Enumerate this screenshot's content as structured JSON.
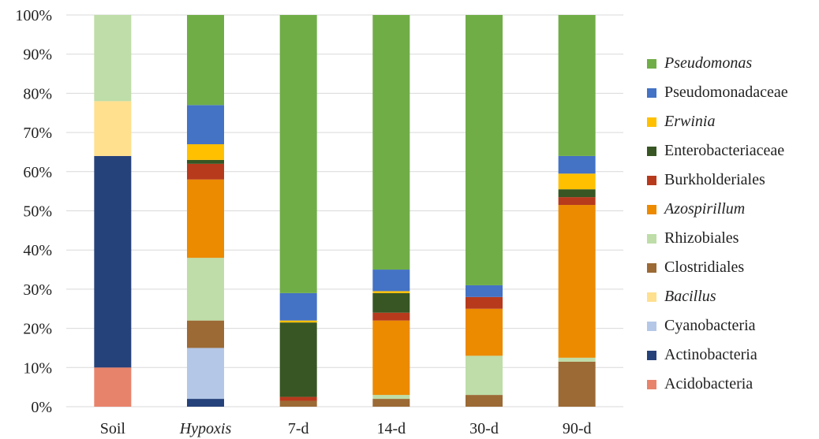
{
  "chart_data": {
    "type": "bar",
    "stacked": true,
    "percent": true,
    "categories": [
      "Soil",
      "Hypoxis",
      "7-d",
      "14-d",
      "30-d",
      "90-d"
    ],
    "categories_italic": [
      false,
      true,
      false,
      false,
      false,
      false
    ],
    "ylim": [
      0,
      100
    ],
    "yticks": [
      "0%",
      "10%",
      "20%",
      "30%",
      "40%",
      "50%",
      "60%",
      "70%",
      "80%",
      "90%",
      "100%"
    ],
    "grid": true,
    "legend_position": "right",
    "series": [
      {
        "name": "Acidobacteria",
        "color": "#E8836B",
        "italic": false,
        "values": [
          10,
          0,
          0,
          0,
          0,
          0
        ]
      },
      {
        "name": "Actinobacteria",
        "color": "#26427A",
        "italic": false,
        "values": [
          54,
          2,
          0,
          0,
          0,
          0
        ]
      },
      {
        "name": "Cyanobacteria",
        "color": "#B4C7E7",
        "italic": false,
        "values": [
          0,
          13,
          0,
          0,
          0,
          0
        ]
      },
      {
        "name": "Bacillus",
        "color": "#FFE08F",
        "italic": true,
        "values": [
          14,
          0,
          0,
          0,
          0,
          0
        ]
      },
      {
        "name": "Clostridiales",
        "color": "#9C6A35",
        "italic": false,
        "values": [
          0,
          7,
          1.5,
          2,
          3,
          11.5
        ]
      },
      {
        "name": "Rhizobiales",
        "color": "#BEDDA8",
        "italic": false,
        "values": [
          22,
          16,
          0,
          1,
          10,
          1
        ]
      },
      {
        "name": "Azospirillum",
        "color": "#EC8A00",
        "italic": true,
        "values": [
          0,
          20,
          0,
          19,
          12,
          39
        ]
      },
      {
        "name": "Burkholderiales",
        "color": "#B73A1D",
        "italic": false,
        "values": [
          0,
          4,
          1,
          2,
          3,
          2
        ]
      },
      {
        "name": "Enterobacteriaceae",
        "color": "#375623",
        "italic": false,
        "values": [
          0,
          1,
          19,
          5,
          0,
          2
        ]
      },
      {
        "name": "Erwinia",
        "color": "#FFC000",
        "italic": true,
        "values": [
          0,
          4,
          0.5,
          0.5,
          0,
          4
        ]
      },
      {
        "name": "Pseudomonadaceae",
        "color": "#4472C4",
        "italic": false,
        "values": [
          0,
          10,
          7,
          5.5,
          3,
          4.5
        ]
      },
      {
        "name": "Pseudomonas",
        "color": "#70AD47",
        "italic": true,
        "values": [
          0,
          23,
          71,
          65,
          69,
          36
        ]
      }
    ]
  }
}
